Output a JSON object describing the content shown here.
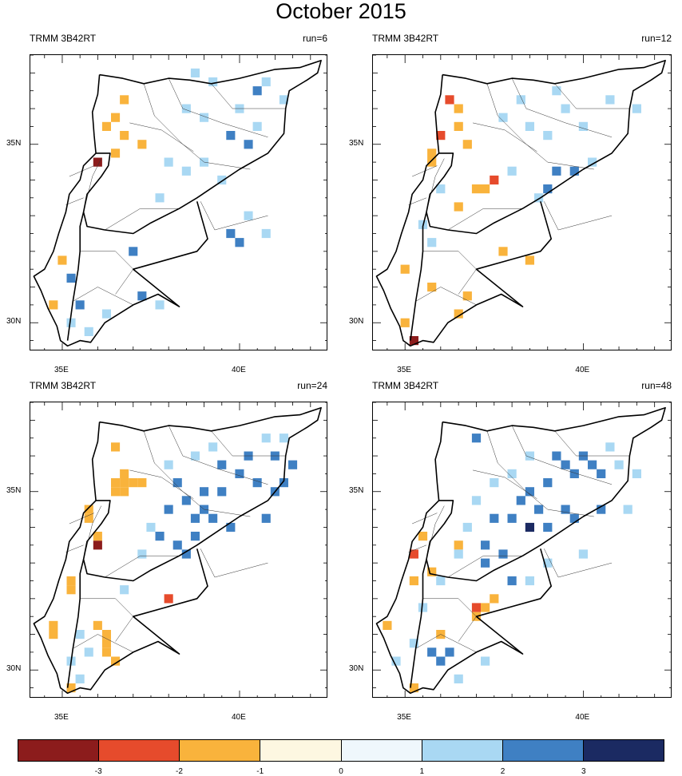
{
  "title": "October 2015",
  "panels": [
    {
      "label_left": "TRMM 3B42RT",
      "label_right": "run=6",
      "x_ticks": [
        "35E",
        "40E"
      ],
      "y_ticks": [
        "35N",
        "30N"
      ]
    },
    {
      "label_left": "TRMM 3B42RT",
      "label_right": "run=12",
      "x_ticks": [
        "35E",
        "40E"
      ],
      "y_ticks": [
        "35N",
        "30N"
      ]
    },
    {
      "label_left": "TRMM 3B42RT",
      "label_right": "run=24",
      "x_ticks": [
        "35E",
        "40E"
      ],
      "y_ticks": [
        "35N",
        "30N"
      ]
    },
    {
      "label_left": "TRMM 3B42RT",
      "label_right": "run=48",
      "x_ticks": [
        "35E",
        "40E"
      ],
      "y_ticks": [
        "35N",
        "30N"
      ]
    }
  ],
  "colorbar": {
    "labels": [
      "-3",
      "-2",
      "-1",
      "0",
      "1",
      "2",
      "3"
    ],
    "colors": [
      "#8c1c1c",
      "#e64b2c",
      "#f9b33c",
      "#fdf7e1",
      "#eff7fc",
      "#a9d8f3",
      "#3f80c3",
      "#1b2a62"
    ]
  },
  "chart_data": [
    {
      "type": "heatmap",
      "title": "October 2015",
      "subtitle_left": "TRMM 3B42RT",
      "subtitle_right": "run=6",
      "xlabel": "",
      "ylabel": "",
      "xlim": [
        34.1,
        42.5
      ],
      "ylim": [
        29.2,
        37.5
      ],
      "x_ticks": [
        "35E",
        "40E"
      ],
      "y_ticks": [
        "35N",
        "30N"
      ],
      "colorbar_levels": [
        -3,
        -2,
        -1,
        0,
        1,
        2,
        3
      ],
      "cells": [
        [
          36.0,
          34.5,
          -3.5
        ],
        [
          36.5,
          34.75,
          -1.5
        ],
        [
          36.25,
          35.5,
          -1.5
        ],
        [
          36.75,
          35.25,
          -1.5
        ],
        [
          36.5,
          35.75,
          -1.5
        ],
        [
          36.75,
          36.25,
          -1.5
        ],
        [
          37.25,
          35.0,
          -1.5
        ],
        [
          35.0,
          31.75,
          -1.5
        ],
        [
          34.75,
          30.5,
          -1.5
        ],
        [
          38.5,
          36.0,
          1.5
        ],
        [
          39.0,
          35.75,
          1.5
        ],
        [
          39.75,
          35.25,
          2.5
        ],
        [
          40.25,
          35.0,
          2.5
        ],
        [
          40.0,
          36.0,
          1.5
        ],
        [
          40.5,
          35.5,
          1.5
        ],
        [
          38.5,
          34.25,
          1.5
        ],
        [
          39.0,
          34.5,
          1.5
        ],
        [
          39.5,
          34.0,
          1.5
        ],
        [
          38.0,
          34.5,
          1.5
        ],
        [
          37.75,
          33.5,
          1.5
        ],
        [
          40.25,
          33.0,
          1.5
        ],
        [
          40.75,
          32.5,
          1.5
        ],
        [
          39.75,
          32.5,
          2.5
        ],
        [
          40.0,
          32.25,
          2.5
        ],
        [
          37.0,
          32.0,
          2.5
        ],
        [
          35.5,
          30.5,
          2.5
        ],
        [
          35.25,
          31.25,
          2.5
        ],
        [
          36.25,
          30.25,
          1.5
        ],
        [
          37.25,
          30.75,
          2.5
        ],
        [
          37.75,
          30.5,
          1.5
        ],
        [
          35.25,
          30.0,
          1.5
        ],
        [
          35.75,
          29.75,
          1.5
        ],
        [
          38.75,
          37.0,
          1.5
        ],
        [
          39.25,
          36.75,
          1.5
        ],
        [
          41.25,
          36.25,
          1.5
        ],
        [
          40.75,
          36.75,
          1.5
        ],
        [
          40.5,
          36.5,
          2.5
        ]
      ]
    },
    {
      "type": "heatmap",
      "title": "October 2015",
      "subtitle_left": "TRMM 3B42RT",
      "subtitle_right": "run=12",
      "xlabel": "",
      "ylabel": "",
      "xlim": [
        34.1,
        42.5
      ],
      "ylim": [
        29.2,
        37.5
      ],
      "x_ticks": [
        "35E",
        "40E"
      ],
      "y_ticks": [
        "35N",
        "30N"
      ],
      "colorbar_levels": [
        -3,
        -2,
        -1,
        0,
        1,
        2,
        3
      ],
      "cells": [
        [
          36.25,
          36.25,
          -2.5
        ],
        [
          36.0,
          35.25,
          -2.5
        ],
        [
          37.5,
          34.0,
          -2.5
        ],
        [
          35.25,
          29.5,
          -3.5
        ],
        [
          36.5,
          36.0,
          -1.5
        ],
        [
          36.5,
          35.5,
          -1.5
        ],
        [
          36.75,
          35.0,
          -1.5
        ],
        [
          37.0,
          33.75,
          -1.5
        ],
        [
          37.25,
          33.75,
          -1.5
        ],
        [
          35.75,
          34.75,
          -1.5
        ],
        [
          35.75,
          34.5,
          -1.5
        ],
        [
          36.5,
          33.25,
          -1.5
        ],
        [
          37.75,
          32.0,
          -1.5
        ],
        [
          38.5,
          31.75,
          -1.5
        ],
        [
          35.75,
          31.0,
          -1.5
        ],
        [
          36.75,
          30.75,
          -1.5
        ],
        [
          36.5,
          30.25,
          -1.5
        ],
        [
          35.0,
          30.0,
          -1.5
        ],
        [
          35.0,
          31.5,
          -1.5
        ],
        [
          39.25,
          34.25,
          2.5
        ],
        [
          39.75,
          34.25,
          2.5
        ],
        [
          39.0,
          33.75,
          2.5
        ],
        [
          39.5,
          36.0,
          1.5
        ],
        [
          40.0,
          35.5,
          1.5
        ],
        [
          38.5,
          35.5,
          1.5
        ],
        [
          39.0,
          35.25,
          1.5
        ],
        [
          40.25,
          34.5,
          1.5
        ],
        [
          40.75,
          36.25,
          1.5
        ],
        [
          39.25,
          36.5,
          1.5
        ],
        [
          38.25,
          36.25,
          1.5
        ],
        [
          37.75,
          35.75,
          1.5
        ],
        [
          38.75,
          33.5,
          1.5
        ],
        [
          38.0,
          34.25,
          1.5
        ],
        [
          36.0,
          33.75,
          1.5
        ],
        [
          41.5,
          36.0,
          1.5
        ],
        [
          35.5,
          32.75,
          1.5
        ],
        [
          35.75,
          32.25,
          1.5
        ]
      ]
    },
    {
      "type": "heatmap",
      "title": "October 2015",
      "subtitle_left": "TRMM 3B42RT",
      "subtitle_right": "run=24",
      "xlabel": "",
      "ylabel": "",
      "xlim": [
        34.1,
        42.5
      ],
      "ylim": [
        29.2,
        37.5
      ],
      "x_ticks": [
        "35E",
        "40E"
      ],
      "y_ticks": [
        "35N",
        "30N"
      ],
      "colorbar_levels": [
        -3,
        -2,
        -1,
        0,
        1,
        2,
        3
      ],
      "cells": [
        [
          36.0,
          33.5,
          -3.5
        ],
        [
          38.0,
          32.0,
          -2.5
        ],
        [
          36.5,
          36.25,
          -1.5
        ],
        [
          36.5,
          35.25,
          -1.5
        ],
        [
          36.5,
          35.0,
          -1.5
        ],
        [
          36.75,
          35.0,
          -1.5
        ],
        [
          36.75,
          35.25,
          -1.5
        ],
        [
          36.75,
          35.5,
          -1.5
        ],
        [
          37.0,
          35.25,
          -1.5
        ],
        [
          37.25,
          35.25,
          -1.5
        ],
        [
          35.75,
          34.5,
          -1.5
        ],
        [
          35.75,
          34.25,
          -1.5
        ],
        [
          36.0,
          33.75,
          -1.5
        ],
        [
          35.25,
          32.5,
          -1.5
        ],
        [
          35.25,
          32.25,
          -1.5
        ],
        [
          34.75,
          31.25,
          -1.5
        ],
        [
          34.75,
          31.0,
          -1.5
        ],
        [
          36.0,
          31.25,
          -1.5
        ],
        [
          36.25,
          31.0,
          -1.5
        ],
        [
          36.25,
          30.75,
          -1.5
        ],
        [
          36.25,
          30.5,
          -1.5
        ],
        [
          36.5,
          30.25,
          -1.5
        ],
        [
          35.25,
          29.5,
          -1.5
        ],
        [
          38.0,
          34.5,
          2.5
        ],
        [
          38.5,
          34.75,
          2.5
        ],
        [
          38.75,
          34.25,
          2.5
        ],
        [
          39.0,
          34.5,
          2.5
        ],
        [
          39.25,
          34.25,
          2.5
        ],
        [
          39.75,
          34.0,
          2.5
        ],
        [
          39.5,
          35.0,
          2.5
        ],
        [
          40.0,
          35.5,
          2.5
        ],
        [
          40.5,
          35.25,
          2.5
        ],
        [
          41.0,
          35.0,
          2.5
        ],
        [
          41.25,
          35.25,
          2.5
        ],
        [
          41.5,
          35.75,
          2.5
        ],
        [
          41.0,
          36.0,
          2.5
        ],
        [
          40.25,
          36.0,
          2.5
        ],
        [
          39.5,
          35.75,
          2.5
        ],
        [
          37.75,
          33.75,
          2.5
        ],
        [
          38.25,
          33.5,
          2.5
        ],
        [
          38.5,
          33.25,
          2.5
        ],
        [
          38.75,
          33.75,
          2.5
        ],
        [
          40.75,
          34.25,
          2.5
        ],
        [
          39.0,
          35.0,
          2.5
        ],
        [
          38.25,
          35.25,
          2.5
        ],
        [
          38.0,
          35.75,
          1.5
        ],
        [
          38.75,
          36.0,
          1.5
        ],
        [
          39.25,
          36.25,
          1.5
        ],
        [
          40.75,
          36.5,
          1.5
        ],
        [
          41.25,
          36.5,
          1.5
        ],
        [
          37.5,
          34.0,
          1.5
        ],
        [
          37.25,
          33.25,
          1.5
        ],
        [
          36.75,
          32.25,
          1.5
        ],
        [
          35.5,
          31.0,
          1.5
        ],
        [
          35.75,
          30.5,
          1.5
        ],
        [
          35.25,
          30.25,
          1.5
        ],
        [
          35.5,
          29.75,
          1.5
        ]
      ]
    },
    {
      "type": "heatmap",
      "title": "October 2015",
      "subtitle_left": "TRMM 3B42RT",
      "subtitle_right": "run=48",
      "xlabel": "",
      "ylabel": "",
      "xlim": [
        34.1,
        42.5
      ],
      "ylim": [
        29.2,
        37.5
      ],
      "x_ticks": [
        "35E",
        "40E"
      ],
      "y_ticks": [
        "35N",
        "30N"
      ],
      "colorbar_levels": [
        -3,
        -2,
        -1,
        0,
        1,
        2,
        3
      ],
      "cells": [
        [
          37.0,
          31.75,
          -2.5
        ],
        [
          35.25,
          33.25,
          -2.5
        ],
        [
          37.0,
          31.5,
          -1.5
        ],
        [
          37.25,
          31.75,
          -1.5
        ],
        [
          37.5,
          32.0,
          -1.5
        ],
        [
          36.5,
          33.5,
          -1.5
        ],
        [
          35.75,
          32.75,
          -1.5
        ],
        [
          35.25,
          32.5,
          -1.5
        ],
        [
          34.5,
          31.25,
          -1.5
        ],
        [
          36.0,
          31.0,
          -1.5
        ],
        [
          35.25,
          29.5,
          -1.5
        ],
        [
          35.5,
          33.75,
          -1.5
        ],
        [
          38.5,
          34.0,
          3.5
        ],
        [
          39.25,
          36.0,
          2.5
        ],
        [
          39.5,
          35.75,
          2.5
        ],
        [
          39.75,
          35.5,
          2.5
        ],
        [
          40.0,
          36.0,
          2.5
        ],
        [
          40.25,
          35.75,
          2.5
        ],
        [
          40.5,
          35.5,
          2.5
        ],
        [
          39.0,
          35.25,
          2.5
        ],
        [
          38.5,
          35.0,
          2.5
        ],
        [
          38.25,
          34.75,
          2.5
        ],
        [
          38.0,
          34.25,
          2.5
        ],
        [
          37.5,
          34.25,
          2.5
        ],
        [
          38.75,
          34.5,
          2.5
        ],
        [
          39.0,
          34.0,
          2.5
        ],
        [
          39.5,
          34.5,
          2.5
        ],
        [
          39.75,
          34.25,
          2.5
        ],
        [
          40.5,
          34.5,
          2.5
        ],
        [
          37.25,
          33.5,
          2.5
        ],
        [
          37.75,
          33.25,
          2.5
        ],
        [
          38.0,
          32.5,
          2.5
        ],
        [
          37.25,
          33.0,
          2.5
        ],
        [
          36.0,
          30.25,
          2.5
        ],
        [
          35.75,
          30.5,
          2.5
        ],
        [
          36.25,
          30.5,
          2.5
        ],
        [
          37.0,
          36.5,
          2.5
        ],
        [
          40.75,
          36.25,
          1.5
        ],
        [
          41.0,
          35.75,
          1.5
        ],
        [
          41.5,
          35.5,
          1.5
        ],
        [
          38.5,
          36.0,
          1.5
        ],
        [
          38.0,
          35.5,
          1.5
        ],
        [
          37.5,
          35.25,
          1.5
        ],
        [
          37.0,
          34.75,
          1.5
        ],
        [
          36.75,
          34.0,
          1.5
        ],
        [
          36.5,
          33.25,
          1.5
        ],
        [
          36.0,
          32.5,
          1.5
        ],
        [
          35.5,
          31.75,
          1.5
        ],
        [
          35.25,
          30.75,
          1.5
        ],
        [
          34.75,
          30.25,
          1.5
        ],
        [
          36.5,
          29.75,
          1.5
        ],
        [
          37.25,
          30.25,
          1.5
        ],
        [
          38.5,
          32.5,
          1.5
        ],
        [
          39.0,
          33.0,
          1.5
        ],
        [
          40.0,
          33.25,
          1.5
        ],
        [
          41.25,
          34.5,
          1.5
        ]
      ]
    }
  ]
}
